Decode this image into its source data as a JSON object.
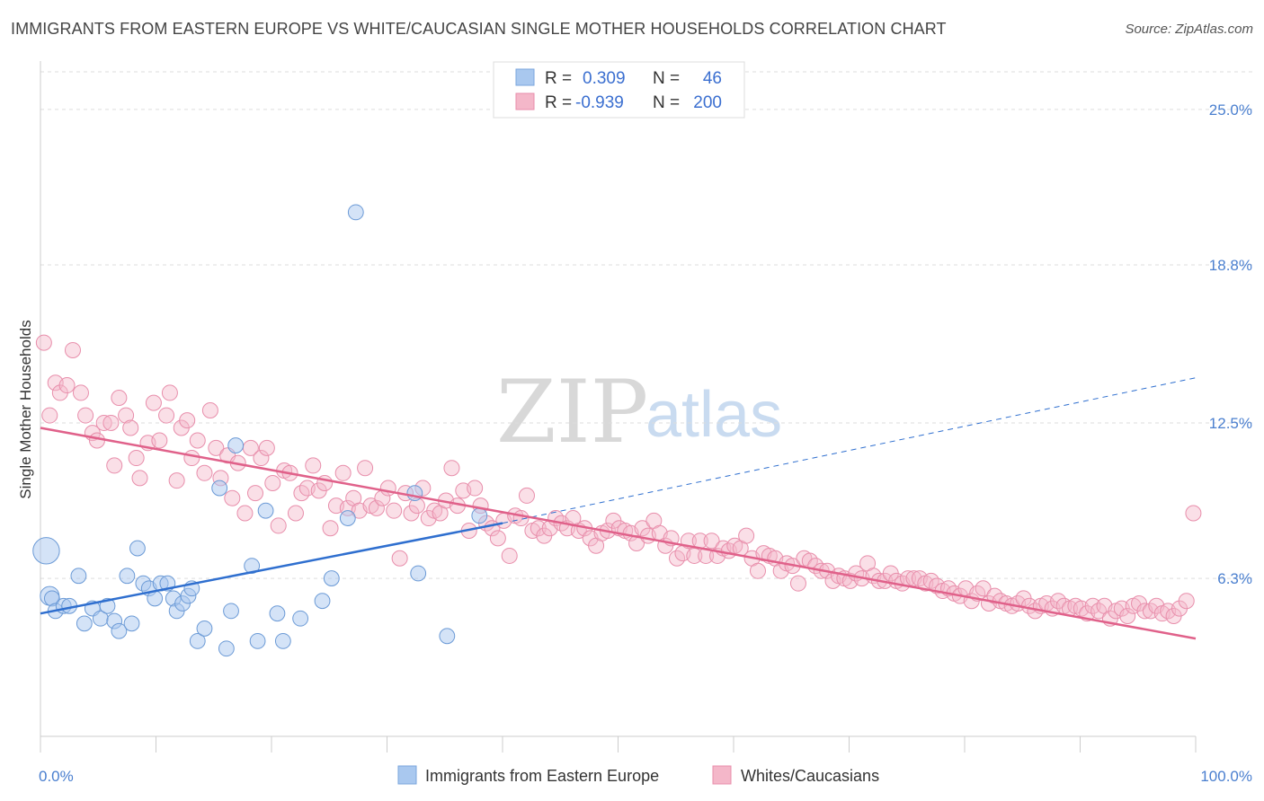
{
  "header": {
    "title": "IMMIGRANTS FROM EASTERN EUROPE VS WHITE/CAUCASIAN SINGLE MOTHER HOUSEHOLDS CORRELATION CHART",
    "source": "Source: ZipAtlas.com"
  },
  "watermark": {
    "zip": "ZIP",
    "atlas": "atlas"
  },
  "legend": {
    "rows": [
      {
        "r_label": "R =",
        "r_value": "0.309",
        "n_label": "N =",
        "n_value": "46",
        "color": "#a9c8ef"
      },
      {
        "r_label": "R =",
        "r_value": "-0.939",
        "n_label": "N =",
        "n_value": "200",
        "color": "#f4b7c9"
      }
    ]
  },
  "bottom_legend": [
    {
      "label": "Immigrants from Eastern Europe",
      "color": "#a9c8ef"
    },
    {
      "label": "Whites/Caucasians",
      "color": "#f4b7c9"
    }
  ],
  "chart_data": {
    "type": "scatter",
    "title": "IMMIGRANTS FROM EASTERN EUROPE VS WHITE/CAUCASIAN SINGLE MOTHER HOUSEHOLDS CORRELATION CHART",
    "xlabel": "",
    "ylabel": "Single Mother Households",
    "xlim": [
      0,
      100
    ],
    "ylim": [
      0,
      26.5
    ],
    "x_tick_labels": [
      "0.0%",
      "100.0%"
    ],
    "y_ticks": [
      6.3,
      12.5,
      18.8,
      25.0
    ],
    "y_tick_labels": [
      "6.3%",
      "12.5%",
      "18.8%",
      "25.0%"
    ],
    "grid": "horizontal dashed",
    "colors": {
      "blue": "#a9c8ef",
      "blue_line": "#2f6fcf",
      "pink": "#f4b7c9",
      "pink_line": "#e0618a",
      "tick": "#4a7fcf"
    },
    "series": [
      {
        "name": "Immigrants from Eastern Europe",
        "color": "#a9c8ef",
        "points": [
          [
            0.5,
            7.4,
            14
          ],
          [
            0.8,
            5.6,
            10
          ],
          [
            1.0,
            5.5,
            8
          ],
          [
            1.3,
            5.0,
            8
          ],
          [
            2.0,
            5.2,
            8
          ],
          [
            2.5,
            5.2,
            8
          ],
          [
            3.3,
            6.4,
            8
          ],
          [
            3.8,
            4.5,
            8
          ],
          [
            4.5,
            5.1,
            8
          ],
          [
            5.2,
            4.7,
            8
          ],
          [
            5.8,
            5.2,
            8
          ],
          [
            6.4,
            4.6,
            8
          ],
          [
            6.8,
            4.2,
            8
          ],
          [
            7.5,
            6.4,
            8
          ],
          [
            7.9,
            4.5,
            8
          ],
          [
            8.4,
            7.5,
            8
          ],
          [
            8.9,
            6.1,
            8
          ],
          [
            9.4,
            5.9,
            8
          ],
          [
            9.9,
            5.5,
            8
          ],
          [
            10.4,
            6.1,
            8
          ],
          [
            11.0,
            6.1,
            8
          ],
          [
            11.5,
            5.5,
            8
          ],
          [
            11.8,
            5.0,
            8
          ],
          [
            12.3,
            5.3,
            8
          ],
          [
            12.8,
            5.6,
            8
          ],
          [
            13.1,
            5.9,
            8
          ],
          [
            13.6,
            3.8,
            8
          ],
          [
            14.2,
            4.3,
            8
          ],
          [
            15.5,
            9.9,
            8
          ],
          [
            16.1,
            3.5,
            8
          ],
          [
            16.5,
            5.0,
            8
          ],
          [
            16.9,
            11.6,
            8
          ],
          [
            18.8,
            3.8,
            8
          ],
          [
            18.3,
            6.8,
            8
          ],
          [
            19.5,
            9.0,
            8
          ],
          [
            20.5,
            4.9,
            8
          ],
          [
            21.0,
            3.8,
            8
          ],
          [
            22.5,
            4.7,
            8
          ],
          [
            24.4,
            5.4,
            8
          ],
          [
            25.2,
            6.3,
            8
          ],
          [
            26.6,
            8.7,
            8
          ],
          [
            27.3,
            20.9,
            8
          ],
          [
            32.4,
            9.7,
            8
          ],
          [
            32.7,
            6.5,
            8
          ],
          [
            35.2,
            4.0,
            8
          ],
          [
            38.0,
            8.8,
            8
          ]
        ]
      },
      {
        "name": "Whites/Caucasians",
        "color": "#f4b7c9",
        "points": [
          [
            0.3,
            15.7
          ],
          [
            0.8,
            12.8
          ],
          [
            1.3,
            14.1
          ],
          [
            1.7,
            13.7
          ],
          [
            2.3,
            14.0
          ],
          [
            2.8,
            15.4
          ],
          [
            3.5,
            13.7
          ],
          [
            3.9,
            12.8
          ],
          [
            4.5,
            12.1
          ],
          [
            4.9,
            11.8
          ],
          [
            5.5,
            12.5
          ],
          [
            6.1,
            12.5
          ],
          [
            6.4,
            10.8
          ],
          [
            6.8,
            13.5
          ],
          [
            7.4,
            12.8
          ],
          [
            7.8,
            12.3
          ],
          [
            8.3,
            11.1
          ],
          [
            8.6,
            10.3
          ],
          [
            9.3,
            11.7
          ],
          [
            9.8,
            13.3
          ],
          [
            10.3,
            11.8
          ],
          [
            10.9,
            12.8
          ],
          [
            11.2,
            13.7
          ],
          [
            11.8,
            10.2
          ],
          [
            12.2,
            12.3
          ],
          [
            12.7,
            12.6
          ],
          [
            13.1,
            11.1
          ],
          [
            13.6,
            11.8
          ],
          [
            14.2,
            10.5
          ],
          [
            14.7,
            13.0
          ],
          [
            15.2,
            11.5
          ],
          [
            15.6,
            10.3
          ],
          [
            16.2,
            11.2
          ],
          [
            16.6,
            9.5
          ],
          [
            17.1,
            10.9
          ],
          [
            17.7,
            8.9
          ],
          [
            18.2,
            11.5
          ],
          [
            18.6,
            9.7
          ],
          [
            19.1,
            11.1
          ],
          [
            19.6,
            11.5
          ],
          [
            20.1,
            10.1
          ],
          [
            20.6,
            8.4
          ],
          [
            21.1,
            10.6
          ],
          [
            21.6,
            10.5
          ],
          [
            22.1,
            8.9
          ],
          [
            22.6,
            9.7
          ],
          [
            23.1,
            9.9
          ],
          [
            23.6,
            10.8
          ],
          [
            24.1,
            9.8
          ],
          [
            24.6,
            10.1
          ],
          [
            25.1,
            8.3
          ],
          [
            25.6,
            9.2
          ],
          [
            26.2,
            10.5
          ],
          [
            26.6,
            9.1
          ],
          [
            27.1,
            9.5
          ],
          [
            27.6,
            9.0
          ],
          [
            28.1,
            10.7
          ],
          [
            28.6,
            9.2
          ],
          [
            29.1,
            9.1
          ],
          [
            29.6,
            9.5
          ],
          [
            30.1,
            9.9
          ],
          [
            30.6,
            9.0
          ],
          [
            31.1,
            7.1
          ],
          [
            31.6,
            9.7
          ],
          [
            32.1,
            8.9
          ],
          [
            32.6,
            9.2
          ],
          [
            33.1,
            9.9
          ],
          [
            33.6,
            8.7
          ],
          [
            34.1,
            9.0
          ],
          [
            34.6,
            8.9
          ],
          [
            35.1,
            9.4
          ],
          [
            35.6,
            10.7
          ],
          [
            36.1,
            9.2
          ],
          [
            36.6,
            9.8
          ],
          [
            37.1,
            8.2
          ],
          [
            37.6,
            9.9
          ],
          [
            38.1,
            9.2
          ],
          [
            38.6,
            8.5
          ],
          [
            39.1,
            8.3
          ],
          [
            39.6,
            7.9
          ],
          [
            40.1,
            8.6
          ],
          [
            40.6,
            7.2
          ],
          [
            41.1,
            8.8
          ],
          [
            41.6,
            8.7
          ],
          [
            42.1,
            9.6
          ],
          [
            42.6,
            8.2
          ],
          [
            43.1,
            8.3
          ],
          [
            43.6,
            8.0
          ],
          [
            44.1,
            8.3
          ],
          [
            44.6,
            8.7
          ],
          [
            45.1,
            8.5
          ],
          [
            45.6,
            8.3
          ],
          [
            46.1,
            8.7
          ],
          [
            46.6,
            8.2
          ],
          [
            47.1,
            8.3
          ],
          [
            47.6,
            7.9
          ],
          [
            48.1,
            7.6
          ],
          [
            48.6,
            8.1
          ],
          [
            49.1,
            8.2
          ],
          [
            49.6,
            8.6
          ],
          [
            50.1,
            8.3
          ],
          [
            50.6,
            8.2
          ],
          [
            51.1,
            8.1
          ],
          [
            51.6,
            7.7
          ],
          [
            52.1,
            8.3
          ],
          [
            52.6,
            8.0
          ],
          [
            53.1,
            8.6
          ],
          [
            53.6,
            8.1
          ],
          [
            54.1,
            7.6
          ],
          [
            54.6,
            7.9
          ],
          [
            55.1,
            7.1
          ],
          [
            55.6,
            7.3
          ],
          [
            56.1,
            7.8
          ],
          [
            56.6,
            7.2
          ],
          [
            57.1,
            7.8
          ],
          [
            57.6,
            7.2
          ],
          [
            58.1,
            7.8
          ],
          [
            58.6,
            7.2
          ],
          [
            59.1,
            7.5
          ],
          [
            59.6,
            7.4
          ],
          [
            60.1,
            7.6
          ],
          [
            60.6,
            7.5
          ],
          [
            61.1,
            8.0
          ],
          [
            61.6,
            7.1
          ],
          [
            62.1,
            6.6
          ],
          [
            62.6,
            7.3
          ],
          [
            63.1,
            7.2
          ],
          [
            63.6,
            7.1
          ],
          [
            64.1,
            6.6
          ],
          [
            64.6,
            6.9
          ],
          [
            65.1,
            6.8
          ],
          [
            65.6,
            6.1
          ],
          [
            66.1,
            7.1
          ],
          [
            66.6,
            7.0
          ],
          [
            67.1,
            6.8
          ],
          [
            67.6,
            6.6
          ],
          [
            68.1,
            6.6
          ],
          [
            68.6,
            6.2
          ],
          [
            69.1,
            6.4
          ],
          [
            69.6,
            6.3
          ],
          [
            70.1,
            6.2
          ],
          [
            70.6,
            6.5
          ],
          [
            71.1,
            6.3
          ],
          [
            71.6,
            6.9
          ],
          [
            72.1,
            6.4
          ],
          [
            72.6,
            6.2
          ],
          [
            73.1,
            6.2
          ],
          [
            73.6,
            6.5
          ],
          [
            74.1,
            6.2
          ],
          [
            74.6,
            6.1
          ],
          [
            75.1,
            6.3
          ],
          [
            75.6,
            6.3
          ],
          [
            76.1,
            6.3
          ],
          [
            76.6,
            6.1
          ],
          [
            77.1,
            6.2
          ],
          [
            77.6,
            6.0
          ],
          [
            78.1,
            5.8
          ],
          [
            78.6,
            5.9
          ],
          [
            79.1,
            5.7
          ],
          [
            79.6,
            5.6
          ],
          [
            80.1,
            5.9
          ],
          [
            80.6,
            5.4
          ],
          [
            81.1,
            5.7
          ],
          [
            81.6,
            5.9
          ],
          [
            82.1,
            5.3
          ],
          [
            82.6,
            5.6
          ],
          [
            83.1,
            5.4
          ],
          [
            83.6,
            5.3
          ],
          [
            84.1,
            5.2
          ],
          [
            84.6,
            5.3
          ],
          [
            85.1,
            5.5
          ],
          [
            85.6,
            5.2
          ],
          [
            86.1,
            5.0
          ],
          [
            86.6,
            5.2
          ],
          [
            87.1,
            5.3
          ],
          [
            87.6,
            5.1
          ],
          [
            88.1,
            5.4
          ],
          [
            88.6,
            5.2
          ],
          [
            89.1,
            5.1
          ],
          [
            89.6,
            5.2
          ],
          [
            90.1,
            5.1
          ],
          [
            90.6,
            4.9
          ],
          [
            91.1,
            5.2
          ],
          [
            91.6,
            5.0
          ],
          [
            92.1,
            5.2
          ],
          [
            92.6,
            4.7
          ],
          [
            93.1,
            5.0
          ],
          [
            93.6,
            5.1
          ],
          [
            94.1,
            4.8
          ],
          [
            94.6,
            5.2
          ],
          [
            95.1,
            5.3
          ],
          [
            95.6,
            5.0
          ],
          [
            96.1,
            5.0
          ],
          [
            96.6,
            5.2
          ],
          [
            97.1,
            4.9
          ],
          [
            97.6,
            5.0
          ],
          [
            98.1,
            4.8
          ],
          [
            98.6,
            5.1
          ],
          [
            99.2,
            5.4
          ],
          [
            99.8,
            8.9
          ]
        ]
      }
    ],
    "trendlines": [
      {
        "series": "Immigrants from Eastern Europe",
        "solid": [
          [
            0,
            4.9
          ],
          [
            40,
            8.5
          ]
        ],
        "dashed": [
          [
            40,
            8.5
          ],
          [
            100,
            14.3
          ]
        ],
        "color": "#2f6fcf"
      },
      {
        "series": "Whites/Caucasians",
        "solid": [
          [
            0,
            12.3
          ],
          [
            100,
            3.9
          ]
        ],
        "color": "#e0618a"
      }
    ]
  }
}
